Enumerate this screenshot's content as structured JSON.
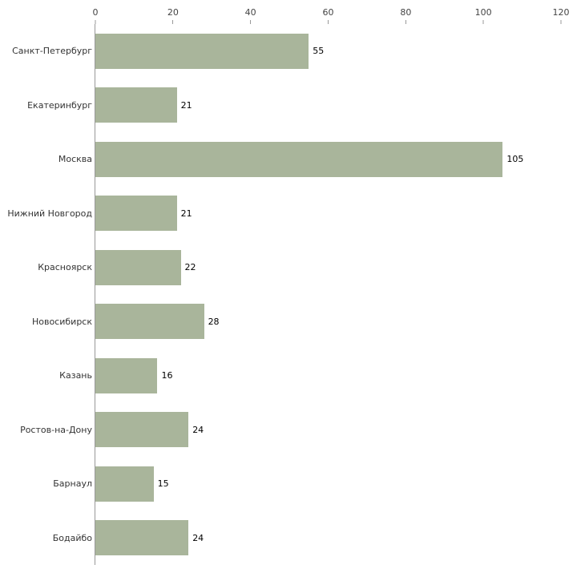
{
  "chart_data": {
    "type": "bar",
    "orientation": "horizontal",
    "title": "",
    "xlabel": "",
    "ylabel": "",
    "categories": [
      "Санкт-Петербург",
      "Екатеринбург",
      "Москва",
      "Нижний Новгород",
      "Красноярск",
      "Новосибирск",
      "Казань",
      "Ростов-на-Дону",
      "Барнаул",
      "Бодайбо"
    ],
    "values": [
      55,
      21,
      105,
      21,
      22,
      28,
      16,
      24,
      15,
      24
    ],
    "xlim": [
      0,
      120
    ],
    "x_ticks": [
      0,
      20,
      40,
      60,
      80,
      100,
      120
    ],
    "grid": false,
    "legend": "none",
    "value_labels": true,
    "colors": {
      "bar_fill": "#a9b59b",
      "axis_line": "#999999",
      "tick_text": "#444444",
      "category_text": "#333333",
      "value_text": "#000000",
      "background": "#ffffff"
    }
  }
}
